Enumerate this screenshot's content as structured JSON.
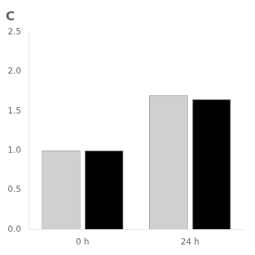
{
  "chart_data": {
    "type": "bar",
    "title": "C",
    "categories": [
      "0 h",
      "24 h"
    ],
    "series": [
      {
        "color": "#d0d0d0",
        "values": [
          1.0,
          1.7
        ]
      },
      {
        "color": "#000000",
        "values": [
          1.0,
          1.65
        ]
      }
    ],
    "ylim": [
      0,
      2.5
    ],
    "yticks": [
      {
        "value": 0,
        "label": "0.0"
      },
      0.5,
      {
        "value": 1,
        "label": "1.0"
      },
      1.5,
      {
        "value": 2,
        "label": "2.0"
      },
      2.5
    ],
    "grid": false
  }
}
